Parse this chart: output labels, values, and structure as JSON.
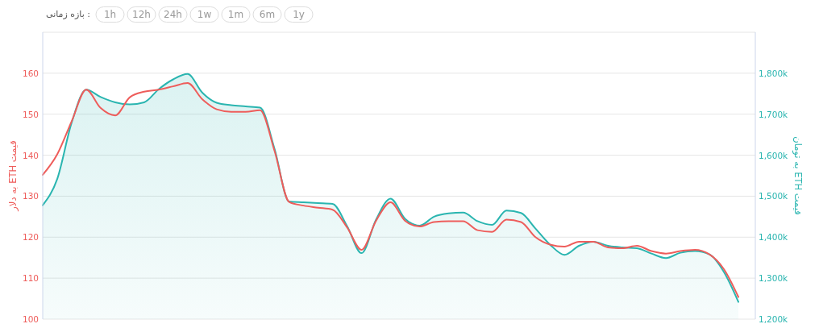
{
  "chart_data": {
    "type": "line",
    "subtitle": "بازه زمانی :",
    "annotations": [
      "1h",
      "12h",
      "24h",
      "1w",
      "1m",
      "6m",
      "1y"
    ],
    "ylabel": "قیمت ETH به دلار",
    "y2label": "قیمت ETH به تومان",
    "categories": [
      null,
      null,
      null,
      null,
      null,
      null,
      null,
      null,
      null,
      null,
      null,
      null,
      null,
      null,
      null,
      null,
      null,
      null,
      null,
      null,
      null,
      null,
      null,
      null,
      null,
      null,
      null,
      null,
      null,
      null,
      null,
      null,
      null,
      null,
      null,
      null,
      null,
      null,
      null,
      null,
      null,
      null,
      null,
      null,
      null,
      null,
      null,
      null,
      null
    ],
    "series": [
      {
        "type": "area",
        "axis": "y2",
        "color": "#2ab5b0",
        "values": [
          1478000,
          1542000,
          1680000,
          1760000,
          1742000,
          1729000,
          1724000,
          1729000,
          1761000,
          1785000,
          1798000,
          1753000,
          1728000,
          1722000,
          1719000,
          1716000,
          1615000,
          1487000,
          1485000,
          1483000,
          1481000,
          1427000,
          1361000,
          1443000,
          1494000,
          1445000,
          1428000,
          1450000,
          1458000,
          1460000,
          1439000,
          1430000,
          1465000,
          1459000,
          1421000,
          1382000,
          1357000,
          1379000,
          1389000,
          1379000,
          1375000,
          1373000,
          1360000,
          1349000,
          1362000,
          1366000,
          1358000,
          1315000,
          1242000
        ]
      },
      {
        "type": "line",
        "color": "#ee5d5b",
        "values": [
          135.2,
          140.2,
          148.3,
          156.0,
          151.5,
          149.7,
          154.1,
          155.5,
          156.0,
          156.8,
          157.6,
          153.7,
          151.2,
          150.6,
          150.6,
          151.0,
          141.0,
          128.6,
          127.7,
          127.2,
          126.7,
          122.4,
          116.9,
          124.0,
          128.5,
          124.0,
          122.6,
          123.7,
          123.9,
          123.9,
          121.7,
          121.3,
          124.3,
          123.7,
          120.0,
          118.2,
          117.7,
          118.9,
          118.9,
          117.5,
          117.3,
          117.9,
          116.6,
          116.0,
          116.6,
          116.9,
          115.8,
          112.2,
          105.4
        ]
      }
    ],
    "ylim": [
      100,
      170
    ],
    "yticks": [
      100,
      110,
      120,
      130,
      140,
      150,
      160,
      {
        "value": 170,
        "label": null
      }
    ],
    "y2lim": [
      1200000,
      1900000
    ],
    "y2ticks": [
      {
        "value": 1200000,
        "label": "1,200k"
      },
      {
        "value": 1300000,
        "label": "1,300k"
      },
      {
        "value": 1400000,
        "label": "1,400k"
      },
      {
        "value": 1500000,
        "label": "1,500k"
      },
      {
        "value": 1600000,
        "label": "1,600k"
      },
      {
        "value": 1700000,
        "label": "1,700k"
      },
      {
        "value": 1800000,
        "label": "1,800k"
      }
    ],
    "grid": "y",
    "tick_labels": "y"
  }
}
